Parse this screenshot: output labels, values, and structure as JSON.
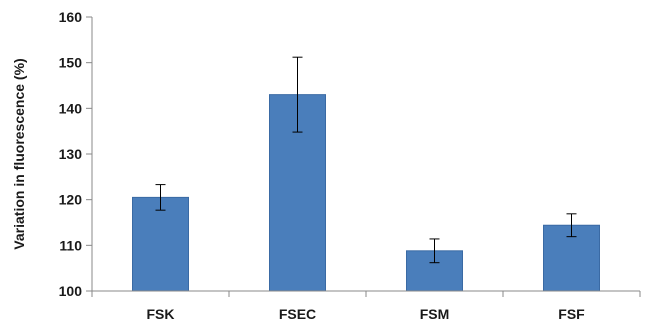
{
  "chart_data": {
    "type": "bar",
    "categories": [
      "FSK",
      "FSEC",
      "FSM",
      "FSF"
    ],
    "values": [
      120.5,
      143,
      108.8,
      114.4
    ],
    "error": [
      2.8,
      8.2,
      2.6,
      2.5
    ],
    "xlabel": "",
    "ylabel": "Variation in fluorescence (%)",
    "ylim": [
      100,
      160
    ],
    "yticks": [
      100,
      110,
      120,
      130,
      140,
      150,
      160
    ],
    "grid": false,
    "legend": "none",
    "colors": {
      "bar": "#4a7ebb",
      "bar_edge": "#3a6aa4",
      "error_bar": "#000000",
      "axis": "#888888"
    }
  }
}
